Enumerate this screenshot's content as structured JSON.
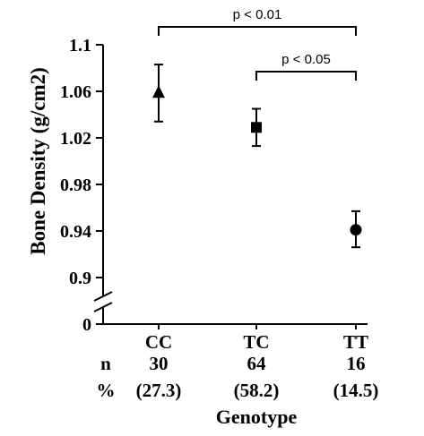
{
  "chart_data": {
    "type": "scatter",
    "title": "",
    "xlabel": "Genotype",
    "ylabel": "Bone Density (g/cm2)",
    "categories": [
      "CC",
      "TC",
      "TT"
    ],
    "ylim": [
      0.9,
      1.1
    ],
    "yticks": [
      "1.1",
      "1.06",
      "1.02",
      "0.98",
      "0.94",
      "0.9"
    ],
    "ytick_values": [
      1.1,
      1.06,
      1.02,
      0.98,
      0.94,
      0.9
    ],
    "y_break_label": "0",
    "grid": false,
    "legend": "none",
    "series": [
      {
        "values": [
          1.059,
          1.029,
          0.941
        ],
        "error_low": [
          1.034,
          1.013,
          0.926
        ],
        "error_high": [
          1.083,
          1.045,
          0.957
        ],
        "markers": [
          "triangle",
          "square",
          "circle"
        ]
      }
    ],
    "annotations": [
      {
        "text": "p < 0.01",
        "from": "CC",
        "to": "TT",
        "level": 1
      },
      {
        "text": "p < 0.05",
        "from": "TC",
        "to": "TT",
        "level": 2
      }
    ],
    "table": {
      "rows": [
        {
          "label": "n",
          "values": [
            "30",
            "64",
            "16"
          ]
        },
        {
          "label": "%",
          "values": [
            "(27.3)",
            "(58.2)",
            "(14.5)"
          ]
        }
      ]
    },
    "colors": {
      "ink": "#000000",
      "background": "#ffffff"
    }
  }
}
